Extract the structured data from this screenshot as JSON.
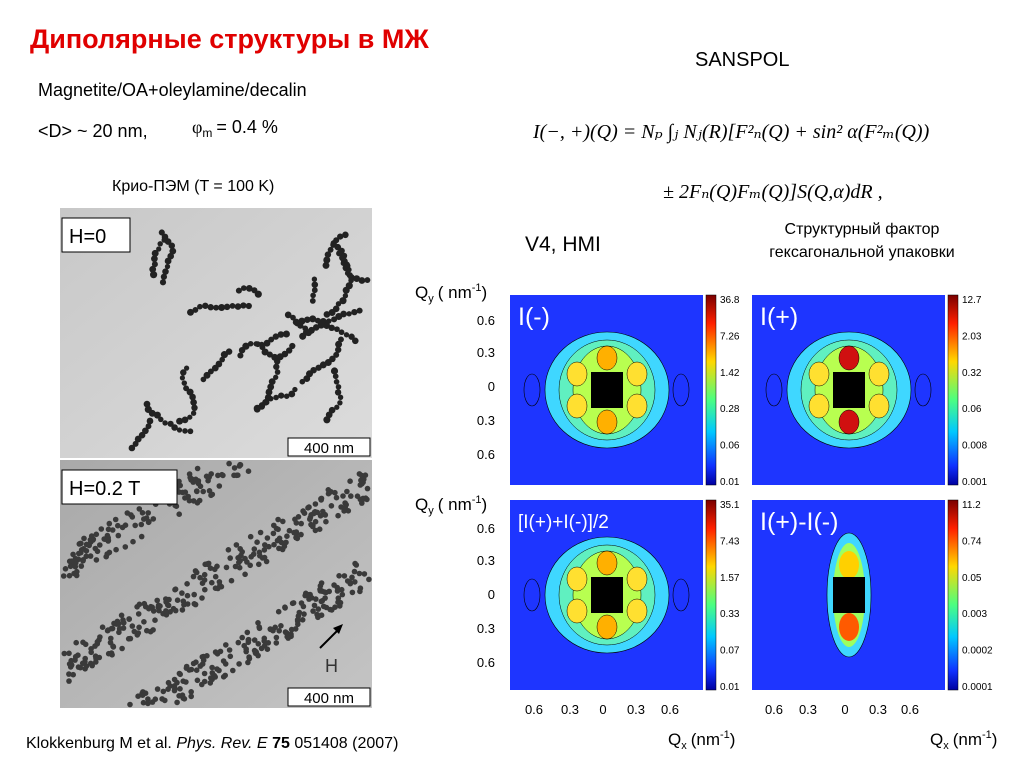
{
  "title": "Диполярные структуры в МЖ",
  "sample": "Magnetite/OA+oleylamine/decalin",
  "size": "<D> ~ 20 nm,",
  "fraction": {
    "symbol": "φ",
    "sub": "m",
    "value": "= 0.4 %"
  },
  "method": "SANSPOL",
  "formula": {
    "line1": "I(−, +)(Q) = Nₚ ∫ⱼ Nⱼ(R)[F²ₙ(Q) + sin² α(F²ₘ(Q))",
    "line2": "± 2Fₙ(Q)Fₘ(Q)]S(Q,α)dR ,"
  },
  "cryo": "Крио-ПЭМ  (T = 100 K)",
  "tem": [
    {
      "label": "H=0",
      "scale": "400 nm"
    },
    {
      "label": "H=0.2 T",
      "scale": "400 nm",
      "field": "H"
    }
  ],
  "instrument": "V4, HMI",
  "structure_note": [
    "Структурный фактор",
    "гексагональной упаковки"
  ],
  "maps": {
    "y_axis_label": {
      "q": "Q",
      "sub": "y",
      "unit": "( nm",
      "sup": "-1",
      "close": ")"
    },
    "x_axis_label": {
      "q": "Q",
      "sub": "x",
      "unit": "(nm",
      "sup": "-1",
      "close": ")"
    },
    "yticks": [
      "0.6",
      "0.3",
      "0",
      "0.3",
      "0.6"
    ],
    "xticks": [
      "0.6",
      "0.3",
      "0",
      "0.3",
      "0.6"
    ],
    "panels": [
      {
        "label": "I(-)",
        "colorbar": [
          "36.8",
          "7.26",
          "1.42",
          "0.28",
          "0.06",
          "0.01"
        ]
      },
      {
        "label": "I(+)",
        "colorbar": [
          "12.7",
          "2.03",
          "0.32",
          "0.06",
          "0.008",
          "0.001"
        ]
      },
      {
        "label": "[I(+)+I(-)]/2",
        "colorbar": [
          "35.1",
          "7.43",
          "1.57",
          "0.33",
          "0.07",
          "0.01"
        ]
      },
      {
        "label": "I(+)-I(-)",
        "colorbar": [
          "11.2",
          "0.74",
          "0.05",
          "0.003",
          "0.0002",
          "0.0001"
        ]
      }
    ]
  },
  "citation": {
    "authors": "Klokkenburg M et al.",
    "journal": "Phys. Rev. E",
    "volume": "75",
    "pages": "051408 (2007)"
  }
}
